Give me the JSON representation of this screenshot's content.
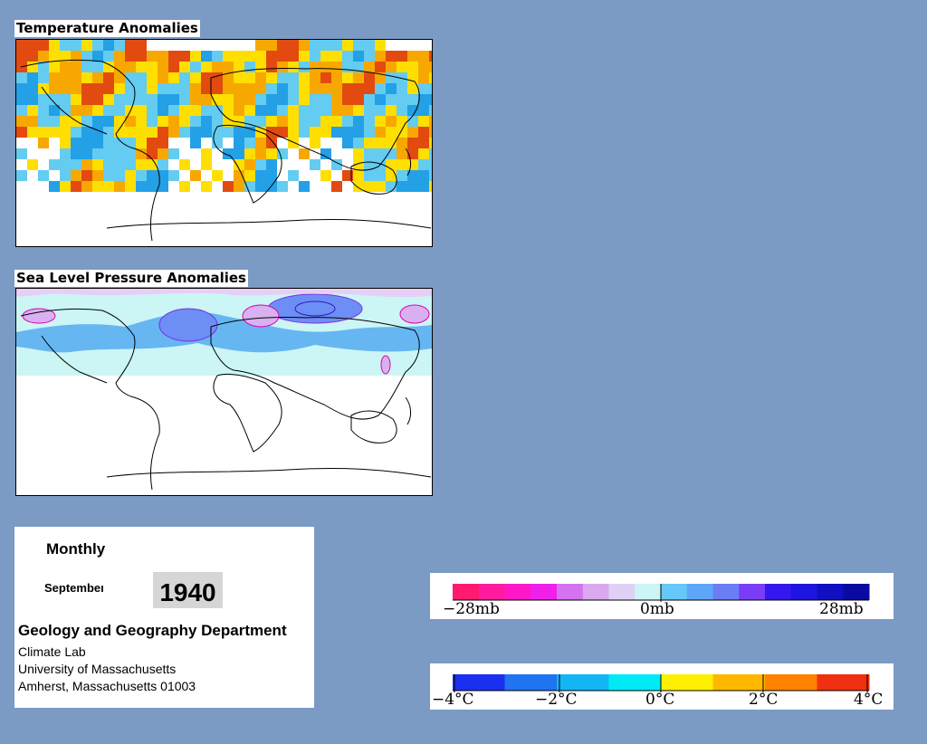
{
  "maps": {
    "temperature": {
      "title": "Temperature Anomalies",
      "colors": {
        "hot": "#e24a10",
        "warm": "#f7a800",
        "mild": "#ffdf00",
        "cool": "#63ccf0",
        "cold": "#23a0e6"
      }
    },
    "pressure": {
      "title": "Sea Level Pressure Anomalies",
      "colors": {
        "light_blue": "#ccf5f5",
        "blue": "#66b6f2",
        "mid_blue": "#6d8ef4",
        "violet": "#d9b0f0",
        "lilac": "#e5cff5",
        "contour": "#7b2fe0",
        "pink_contour": "#e000b0"
      }
    }
  },
  "info": {
    "frequency": "Monthly",
    "month": "Septembeı",
    "year": "1940",
    "department": "Geology and Geography Department",
    "lab": "Climate Lab",
    "university": "University of Massachusetts",
    "address": "Amherst, Massachusetts 01003"
  },
  "legends": {
    "pressure": {
      "labels": [
        "−28mb",
        "0mb",
        "28mb"
      ],
      "colors": [
        "#ff1a6e",
        "#ff1a9e",
        "#ff18c8",
        "#f020e8",
        "#d472f0",
        "#d9a8f0",
        "#e0d0f4",
        "#ccf5f5",
        "#66c8f8",
        "#5ea6f8",
        "#6b7df5",
        "#7a3cf5",
        "#3418f0",
        "#1e14e0",
        "#1010c0",
        "#0a0aa0"
      ]
    },
    "temperature": {
      "labels": [
        "−4°C",
        "−2°C",
        "0°C",
        "2°C",
        "4°C"
      ],
      "colors": [
        "#1a30f0",
        "#1f74f2",
        "#12b6f4",
        "#00eaf6",
        "#ffef00",
        "#ffb800",
        "#ff8200",
        "#f03010"
      ]
    }
  }
}
